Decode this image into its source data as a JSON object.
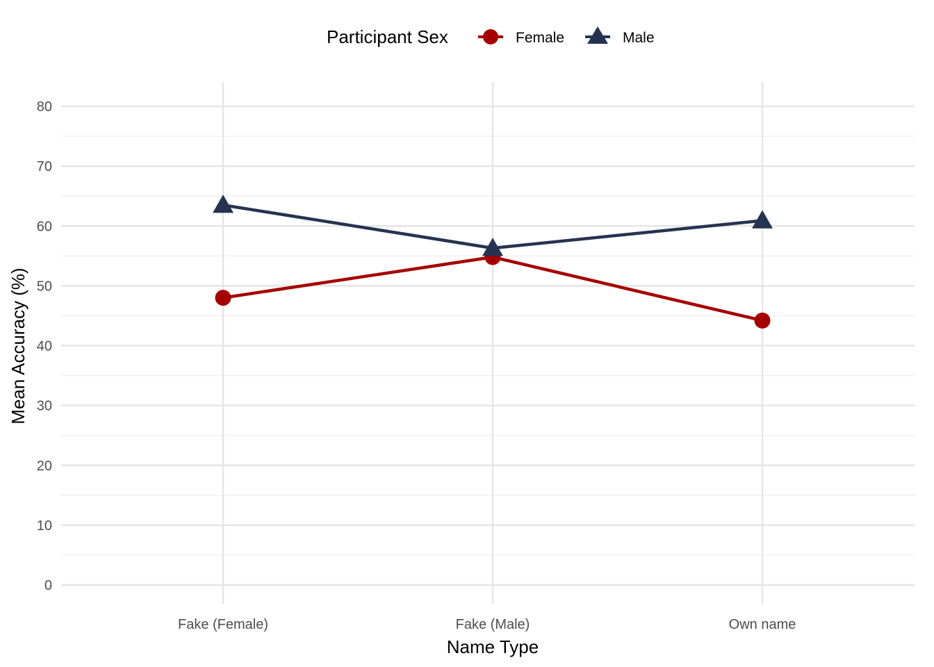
{
  "chart_data": {
    "type": "line",
    "title": "",
    "xlabel": "Name Type",
    "ylabel": "Mean Accuracy (%)",
    "categories": [
      "Fake (Female)",
      "Fake (Male)",
      "Own name"
    ],
    "ylim": [
      -3,
      84
    ],
    "y_ticks": [
      0,
      10,
      20,
      30,
      40,
      50,
      60,
      70,
      80
    ],
    "y_tick_labels": [
      "0",
      "10",
      "20",
      "30",
      "40",
      "50",
      "60",
      "70",
      "80"
    ],
    "grid": true,
    "legend": {
      "title": "Participant Sex",
      "position": "top"
    },
    "series": [
      {
        "name": "Female",
        "values": [
          48.0,
          54.8,
          44.2
        ],
        "color": "#A50000",
        "marker": "circle"
      },
      {
        "name": "Male",
        "values": [
          63.5,
          56.3,
          60.9
        ],
        "color": "#263350",
        "marker": "triangle"
      }
    ]
  }
}
